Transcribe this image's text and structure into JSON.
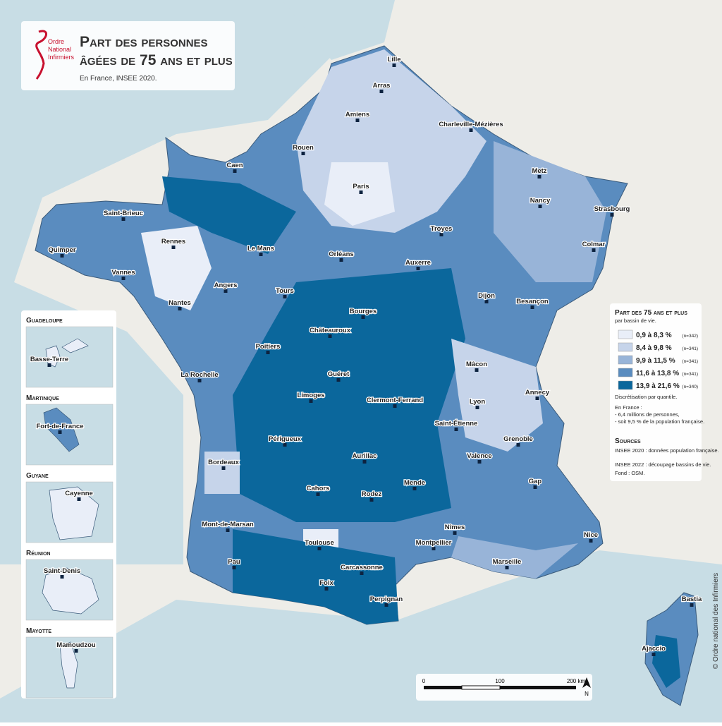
{
  "header": {
    "logo": [
      "Ordre",
      "National",
      "Infirmiers"
    ],
    "title": [
      "Part des personnes",
      "âgées de 75 ans et plus"
    ],
    "subtitle": "En France, INSEE 2020."
  },
  "legend": {
    "title": "Part des 75 ans et plus",
    "subtitle": "par bassin de vie.",
    "classes": [
      {
        "label": "0,9 à 8,3 %",
        "count": "(n=342)",
        "color": "#e9eef8"
      },
      {
        "label": "8,4 à 9,8 %",
        "count": "(n=341)",
        "color": "#c6d4ea"
      },
      {
        "label": "9,9 à 11,5 %",
        "count": "(n=341)",
        "color": "#98b4d8"
      },
      {
        "label": "11,6 à 13,8 %",
        "count": "(n=341)",
        "color": "#5a8cbf"
      },
      {
        "label": "13,9 à 21,6 %",
        "count": "(n=340)",
        "color": "#0b679c"
      }
    ],
    "method": "Discrétisation par quantile.",
    "summary": [
      "En France :",
      "- 6,4 millions de personnes,",
      "- soit 9,5 % de la population française."
    ],
    "sources_title": "Sources",
    "sources": [
      "INSEE 2020 : données population française.",
      "INSEE 2022 : découpage bassins de vie.",
      "Fond : OSM."
    ]
  },
  "cities": [
    "Lille",
    "Arras",
    "Amiens",
    "Charleville-Mézières",
    "Rouen",
    "Caen",
    "Metz",
    "Paris",
    "Nancy",
    "Strasbourg",
    "Saint-Brieuc",
    "Troyes",
    "Rennes",
    "Le Mans",
    "Quimper",
    "Colmar",
    "Orléans",
    "Auxerre",
    "Vannes",
    "Angers",
    "Tours",
    "Nantes",
    "Dijon",
    "Besançon",
    "Bourges",
    "Châteauroux",
    "Poitiers",
    "Mâcon",
    "Guéret",
    "La Rochelle",
    "Annecy",
    "Limoges",
    "Clermont-Ferrand",
    "Lyon",
    "Saint-Étienne",
    "Grenoble",
    "Périgueux",
    "Valence",
    "Bordeaux",
    "Aurillac",
    "Gap",
    "Cahors",
    "Mende",
    "Rodez",
    "Mont-de-Marsan",
    "Nice",
    "Nîmes",
    "Toulouse",
    "Montpellier",
    "Marseille",
    "Pau",
    "Carcassonne",
    "Foix",
    "Perpignan",
    "Bastia",
    "Ajaccio"
  ],
  "insets": [
    {
      "name": "Guadeloupe",
      "city": "Basse-Terre"
    },
    {
      "name": "Martinique",
      "city": "Fort-de-France"
    },
    {
      "name": "Guyane",
      "city": "Cayenne"
    },
    {
      "name": "Réunion",
      "city": "Saint-Denis"
    },
    {
      "name": "Mayotte",
      "city": "Mamoudzou"
    }
  ],
  "scale_bar": {
    "ticks": [
      "0",
      "100",
      "200 km"
    ],
    "north": "N"
  },
  "credit": "© Ordre national des Infirmiers"
}
